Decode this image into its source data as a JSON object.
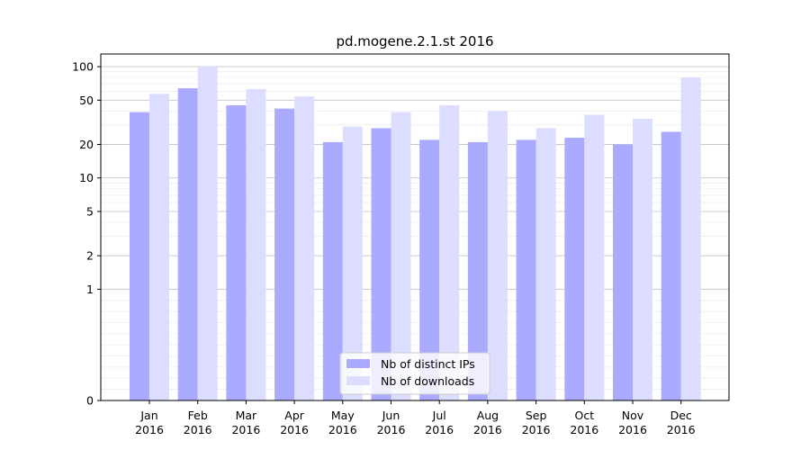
{
  "chart_data": {
    "type": "bar",
    "title": "pd.mogene.2.1.st 2016",
    "xlabel": "",
    "ylabel": "",
    "y_scale": "symlog",
    "ylim": [
      0,
      130
    ],
    "y_ticks": [
      0,
      1,
      2,
      5,
      10,
      20,
      50,
      100
    ],
    "y_tick_labels": [
      "0",
      "1",
      "2",
      "5",
      "10",
      "20",
      "50",
      "100"
    ],
    "grid": true,
    "legend_position": "bottom-center",
    "categories": [
      "Jan",
      "Feb",
      "Mar",
      "Apr",
      "May",
      "Jun",
      "Jul",
      "Aug",
      "Sep",
      "Oct",
      "Nov",
      "Dec"
    ],
    "category_sublabel": "2016",
    "series": [
      {
        "name": "Nb of distinct IPs",
        "color": "#aaaaff",
        "values": [
          39,
          64,
          45,
          42,
          21,
          28,
          22,
          21,
          22,
          23,
          20,
          26
        ]
      },
      {
        "name": "Nb of downloads",
        "color": "#ddddff",
        "values": [
          57,
          100,
          63,
          54,
          29,
          39,
          45,
          40,
          28,
          37,
          34,
          80
        ]
      }
    ]
  }
}
